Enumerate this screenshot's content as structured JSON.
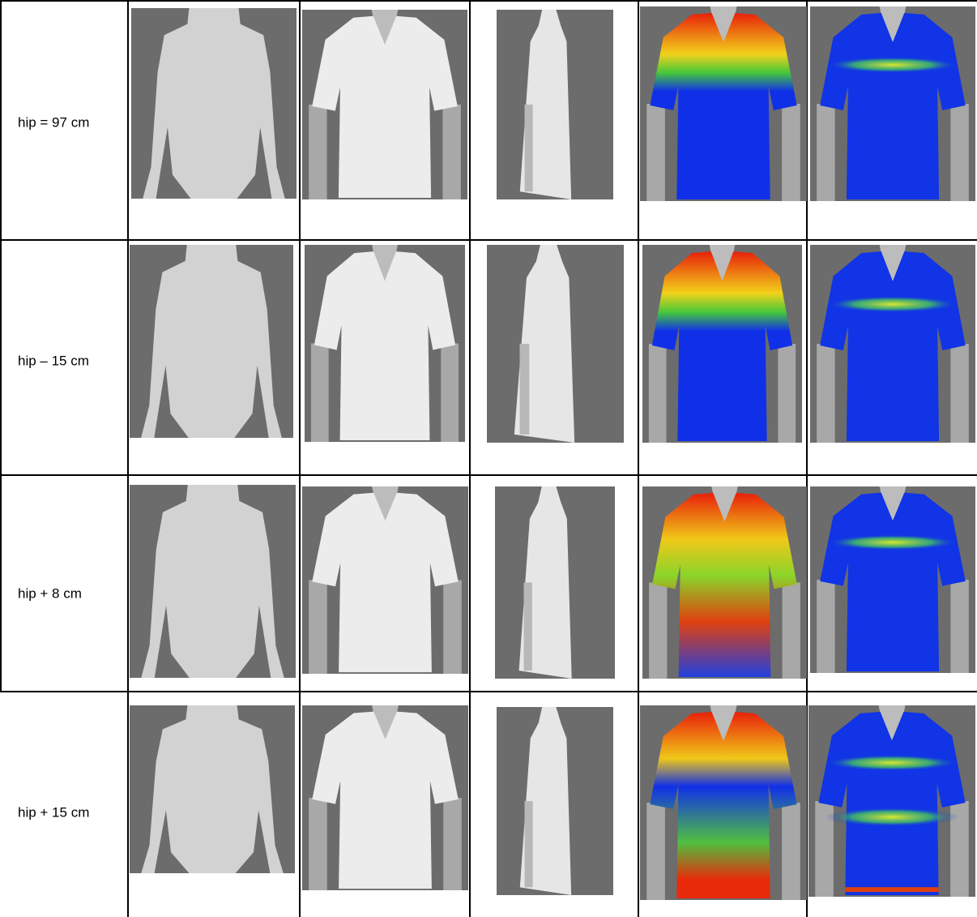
{
  "table": {
    "rows": [
      {
        "label": "hip = 97 cm"
      },
      {
        "label": "hip – 15 cm"
      },
      {
        "label": "hip + 8 cm"
      },
      {
        "label": "hip + 15 cm"
      }
    ]
  }
}
